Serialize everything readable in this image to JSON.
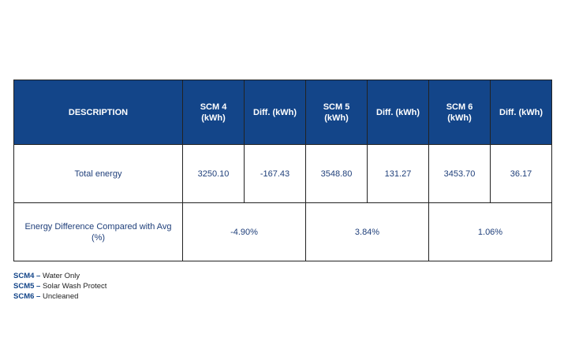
{
  "table": {
    "headers": [
      "DESCRIPTION",
      "SCM 4 (kWh)",
      "Diff. (kWh)",
      "SCM 5 (kWh)",
      "Diff. (kWh)",
      "SCM 6 (kWh)",
      "Diff. (kWh)"
    ],
    "rows": [
      {
        "description": "Total energy",
        "cells": [
          "3250.10",
          "-167.43",
          "3548.80",
          "131.27",
          "3453.70",
          "36.17"
        ]
      },
      {
        "description": "Energy Difference Compared with Avg (%)",
        "cells": [
          "-4.90%",
          "3.84%",
          "1.06%"
        ]
      }
    ]
  },
  "legend": [
    {
      "key": "SCM4 –",
      "text": " Water Only"
    },
    {
      "key": "SCM5 –",
      "text": " Solar Wash Protect"
    },
    {
      "key": "SCM6 –",
      "text": " Uncleaned"
    }
  ],
  "colors": {
    "header_bg": "#134589",
    "header_text": "#ffffff",
    "body_text": "#1f3f7a"
  }
}
